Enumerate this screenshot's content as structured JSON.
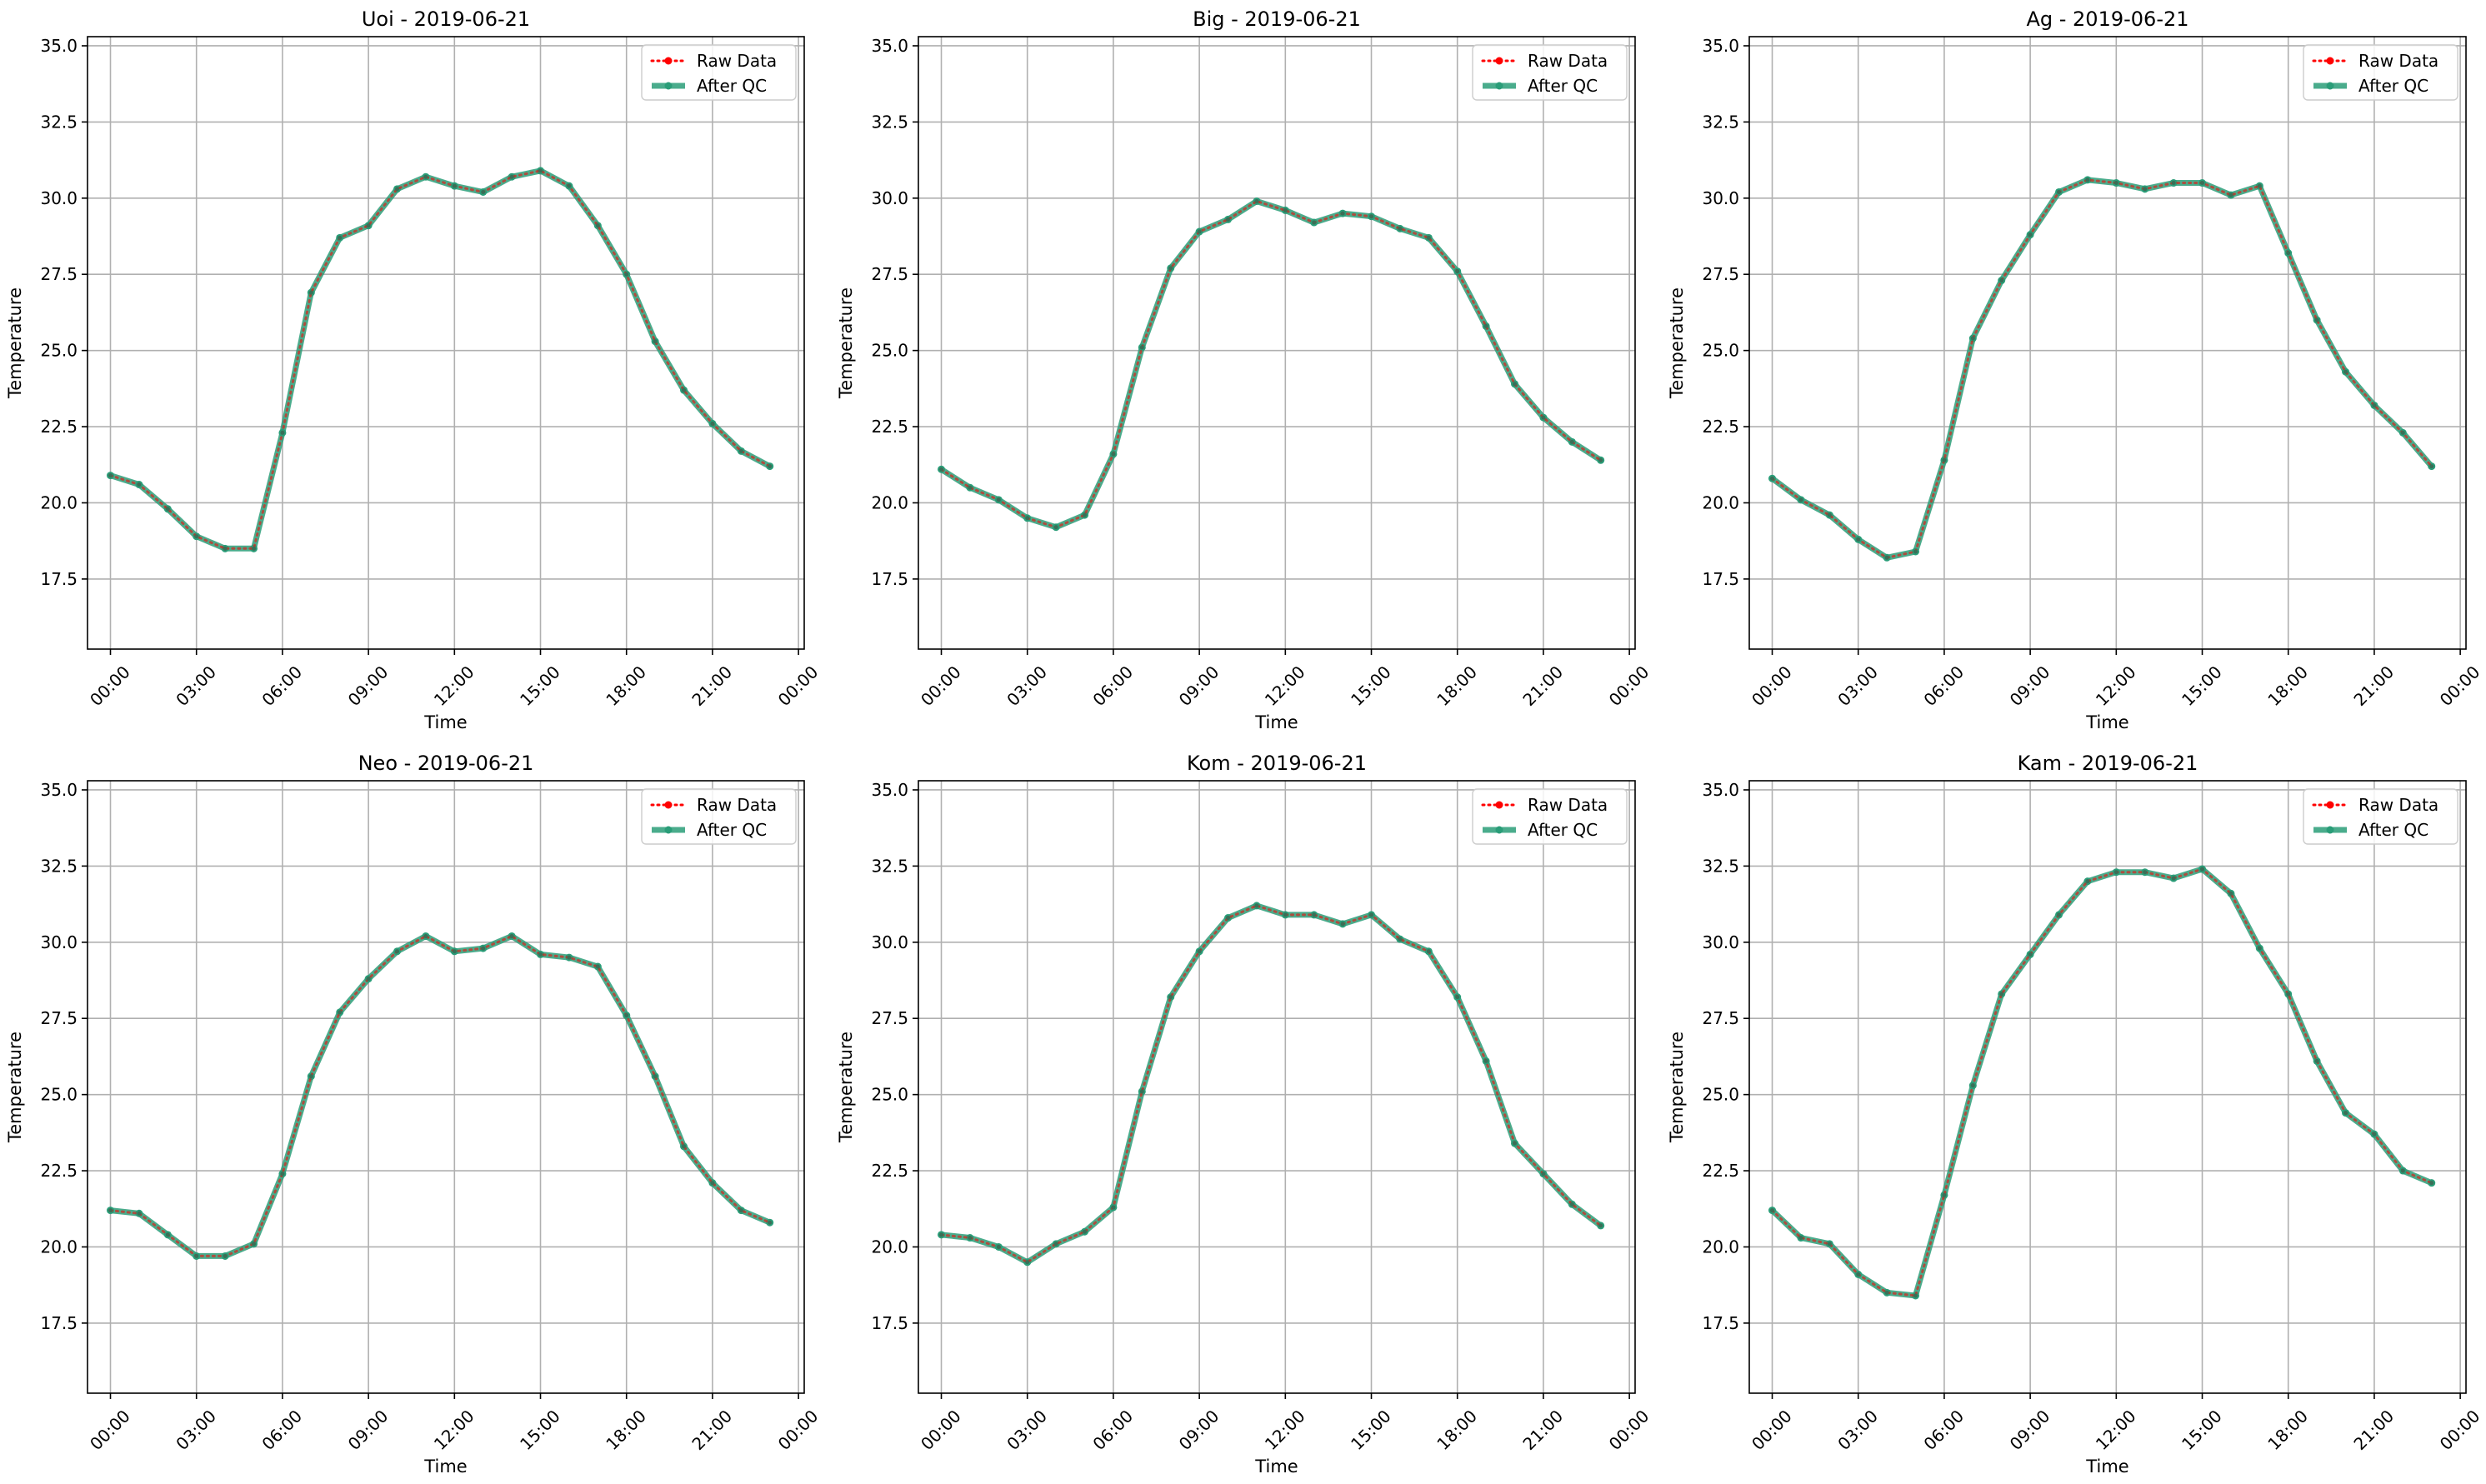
{
  "colors": {
    "raw": "#ff0000",
    "qc": "#2a9d78",
    "grid": "#b0b0b0",
    "axis": "#000000"
  },
  "chart_data": [
    {
      "type": "line",
      "title": "Uoi - 2019-06-21",
      "xlabel": "Time",
      "ylabel": "Temperature",
      "xlim": [
        -0.8,
        24.2
      ],
      "ylim": [
        15.2,
        35.3
      ],
      "xticks": [
        0,
        3,
        6,
        9,
        12,
        15,
        18,
        21,
        24
      ],
      "xtick_labels": [
        "00:00",
        "03:00",
        "06:00",
        "09:00",
        "12:00",
        "15:00",
        "18:00",
        "21:00",
        "00:00"
      ],
      "yticks": [
        17.5,
        20.0,
        22.5,
        25.0,
        27.5,
        30.0,
        32.5,
        35.0
      ],
      "ytick_labels": [
        "17.5",
        "20.0",
        "22.5",
        "25.0",
        "27.5",
        "30.0",
        "32.5",
        "35.0"
      ],
      "grid": true,
      "legend": "top-right",
      "x": [
        0,
        1,
        2,
        3,
        4,
        5,
        6,
        7,
        8,
        9,
        10,
        11,
        12,
        13,
        14,
        15,
        16,
        17,
        18,
        19,
        20,
        21,
        22,
        23
      ],
      "series": [
        {
          "name": "Raw Data",
          "values": [
            20.9,
            20.6,
            19.8,
            18.9,
            18.5,
            18.5,
            22.3,
            26.9,
            28.7,
            29.1,
            30.3,
            30.7,
            30.4,
            30.2,
            30.7,
            30.9,
            30.4,
            29.1,
            27.5,
            25.3,
            23.7,
            22.6,
            21.7,
            21.2
          ]
        },
        {
          "name": "After QC",
          "values": [
            20.9,
            20.6,
            19.8,
            18.9,
            18.5,
            18.5,
            22.3,
            26.9,
            28.7,
            29.1,
            30.3,
            30.7,
            30.4,
            30.2,
            30.7,
            30.9,
            30.4,
            29.1,
            27.5,
            25.3,
            23.7,
            22.6,
            21.7,
            21.2
          ]
        }
      ]
    },
    {
      "type": "line",
      "title": "Big - 2019-06-21",
      "xlabel": "Time",
      "ylabel": "Temperature",
      "xlim": [
        -0.8,
        24.2
      ],
      "ylim": [
        15.2,
        35.3
      ],
      "xticks": [
        0,
        3,
        6,
        9,
        12,
        15,
        18,
        21,
        24
      ],
      "xtick_labels": [
        "00:00",
        "03:00",
        "06:00",
        "09:00",
        "12:00",
        "15:00",
        "18:00",
        "21:00",
        "00:00"
      ],
      "yticks": [
        17.5,
        20.0,
        22.5,
        25.0,
        27.5,
        30.0,
        32.5,
        35.0
      ],
      "ytick_labels": [
        "17.5",
        "20.0",
        "22.5",
        "25.0",
        "27.5",
        "30.0",
        "32.5",
        "35.0"
      ],
      "grid": true,
      "legend": "top-right",
      "x": [
        0,
        1,
        2,
        3,
        4,
        5,
        6,
        7,
        8,
        9,
        10,
        11,
        12,
        13,
        14,
        15,
        16,
        17,
        18,
        19,
        20,
        21,
        22,
        23
      ],
      "series": [
        {
          "name": "Raw Data",
          "values": [
            21.1,
            20.5,
            20.1,
            19.5,
            19.2,
            19.6,
            21.6,
            25.1,
            27.7,
            28.9,
            29.3,
            29.9,
            29.6,
            29.2,
            29.5,
            29.4,
            29.0,
            28.7,
            27.6,
            25.8,
            23.9,
            22.8,
            22.0,
            21.4
          ]
        },
        {
          "name": "After QC",
          "values": [
            21.1,
            20.5,
            20.1,
            19.5,
            19.2,
            19.6,
            21.6,
            25.1,
            27.7,
            28.9,
            29.3,
            29.9,
            29.6,
            29.2,
            29.5,
            29.4,
            29.0,
            28.7,
            27.6,
            25.8,
            23.9,
            22.8,
            22.0,
            21.4
          ]
        }
      ]
    },
    {
      "type": "line",
      "title": "Ag - 2019-06-21",
      "xlabel": "Time",
      "ylabel": "Temperature",
      "xlim": [
        -0.8,
        24.2
      ],
      "ylim": [
        15.2,
        35.3
      ],
      "xticks": [
        0,
        3,
        6,
        9,
        12,
        15,
        18,
        21,
        24
      ],
      "xtick_labels": [
        "00:00",
        "03:00",
        "06:00",
        "09:00",
        "12:00",
        "15:00",
        "18:00",
        "21:00",
        "00:00"
      ],
      "yticks": [
        17.5,
        20.0,
        22.5,
        25.0,
        27.5,
        30.0,
        32.5,
        35.0
      ],
      "ytick_labels": [
        "17.5",
        "20.0",
        "22.5",
        "25.0",
        "27.5",
        "30.0",
        "32.5",
        "35.0"
      ],
      "grid": true,
      "legend": "top-right",
      "x": [
        0,
        1,
        2,
        3,
        4,
        5,
        6,
        7,
        8,
        9,
        10,
        11,
        12,
        13,
        14,
        15,
        16,
        17,
        18,
        19,
        20,
        21,
        22,
        23
      ],
      "series": [
        {
          "name": "Raw Data",
          "values": [
            20.8,
            20.1,
            19.6,
            18.8,
            18.2,
            18.4,
            21.4,
            25.4,
            27.3,
            28.8,
            30.2,
            30.6,
            30.5,
            30.3,
            30.5,
            30.5,
            30.1,
            30.4,
            28.2,
            26.0,
            24.3,
            23.2,
            22.3,
            21.2
          ]
        },
        {
          "name": "After QC",
          "values": [
            20.8,
            20.1,
            19.6,
            18.8,
            18.2,
            18.4,
            21.4,
            25.4,
            27.3,
            28.8,
            30.2,
            30.6,
            30.5,
            30.3,
            30.5,
            30.5,
            30.1,
            30.4,
            28.2,
            26.0,
            24.3,
            23.2,
            22.3,
            21.2
          ]
        }
      ]
    },
    {
      "type": "line",
      "title": "Neo - 2019-06-21",
      "xlabel": "Time",
      "ylabel": "Temperature",
      "xlim": [
        -0.8,
        24.2
      ],
      "ylim": [
        15.2,
        35.3
      ],
      "xticks": [
        0,
        3,
        6,
        9,
        12,
        15,
        18,
        21,
        24
      ],
      "xtick_labels": [
        "00:00",
        "03:00",
        "06:00",
        "09:00",
        "12:00",
        "15:00",
        "18:00",
        "21:00",
        "00:00"
      ],
      "yticks": [
        17.5,
        20.0,
        22.5,
        25.0,
        27.5,
        30.0,
        32.5,
        35.0
      ],
      "ytick_labels": [
        "17.5",
        "20.0",
        "22.5",
        "25.0",
        "27.5",
        "30.0",
        "32.5",
        "35.0"
      ],
      "grid": true,
      "legend": "top-right",
      "x": [
        0,
        1,
        2,
        3,
        4,
        5,
        6,
        7,
        8,
        9,
        10,
        11,
        12,
        13,
        14,
        15,
        16,
        17,
        18,
        19,
        20,
        21,
        22,
        23
      ],
      "series": [
        {
          "name": "Raw Data",
          "values": [
            21.2,
            21.1,
            20.4,
            19.7,
            19.7,
            20.1,
            22.4,
            25.6,
            27.7,
            28.8,
            29.7,
            30.2,
            29.7,
            29.8,
            30.2,
            29.6,
            29.5,
            29.2,
            27.6,
            25.6,
            23.3,
            22.1,
            21.2,
            20.8
          ]
        },
        {
          "name": "After QC",
          "values": [
            21.2,
            21.1,
            20.4,
            19.7,
            19.7,
            20.1,
            22.4,
            25.6,
            27.7,
            28.8,
            29.7,
            30.2,
            29.7,
            29.8,
            30.2,
            29.6,
            29.5,
            29.2,
            27.6,
            25.6,
            23.3,
            22.1,
            21.2,
            20.8
          ]
        }
      ]
    },
    {
      "type": "line",
      "title": "Kom - 2019-06-21",
      "xlabel": "Time",
      "ylabel": "Temperature",
      "xlim": [
        -0.8,
        24.2
      ],
      "ylim": [
        15.2,
        35.3
      ],
      "xticks": [
        0,
        3,
        6,
        9,
        12,
        15,
        18,
        21,
        24
      ],
      "xtick_labels": [
        "00:00",
        "03:00",
        "06:00",
        "09:00",
        "12:00",
        "15:00",
        "18:00",
        "21:00",
        "00:00"
      ],
      "yticks": [
        17.5,
        20.0,
        22.5,
        25.0,
        27.5,
        30.0,
        32.5,
        35.0
      ],
      "ytick_labels": [
        "17.5",
        "20.0",
        "22.5",
        "25.0",
        "27.5",
        "30.0",
        "32.5",
        "35.0"
      ],
      "grid": true,
      "legend": "top-right",
      "x": [
        0,
        1,
        2,
        3,
        4,
        5,
        6,
        7,
        8,
        9,
        10,
        11,
        12,
        13,
        14,
        15,
        16,
        17,
        18,
        19,
        20,
        21,
        22,
        23
      ],
      "series": [
        {
          "name": "Raw Data",
          "values": [
            20.4,
            20.3,
            20.0,
            19.5,
            20.1,
            20.5,
            21.3,
            25.1,
            28.2,
            29.7,
            30.8,
            31.2,
            30.9,
            30.9,
            30.6,
            30.9,
            30.1,
            29.7,
            28.2,
            26.1,
            23.4,
            22.4,
            21.4,
            20.7
          ]
        },
        {
          "name": "After QC",
          "values": [
            20.4,
            20.3,
            20.0,
            19.5,
            20.1,
            20.5,
            21.3,
            25.1,
            28.2,
            29.7,
            30.8,
            31.2,
            30.9,
            30.9,
            30.6,
            30.9,
            30.1,
            29.7,
            28.2,
            26.1,
            23.4,
            22.4,
            21.4,
            20.7
          ]
        }
      ]
    },
    {
      "type": "line",
      "title": "Kam - 2019-06-21",
      "xlabel": "Time",
      "ylabel": "Temperature",
      "xlim": [
        -0.8,
        24.2
      ],
      "ylim": [
        15.2,
        35.3
      ],
      "xticks": [
        0,
        3,
        6,
        9,
        12,
        15,
        18,
        21,
        24
      ],
      "xtick_labels": [
        "00:00",
        "03:00",
        "06:00",
        "09:00",
        "12:00",
        "15:00",
        "18:00",
        "21:00",
        "00:00"
      ],
      "yticks": [
        17.5,
        20.0,
        22.5,
        25.0,
        27.5,
        30.0,
        32.5,
        35.0
      ],
      "ytick_labels": [
        "17.5",
        "20.0",
        "22.5",
        "25.0",
        "27.5",
        "30.0",
        "32.5",
        "35.0"
      ],
      "grid": true,
      "legend": "top-right",
      "x": [
        0,
        1,
        2,
        3,
        4,
        5,
        6,
        7,
        8,
        9,
        10,
        11,
        12,
        13,
        14,
        15,
        16,
        17,
        18,
        19,
        20,
        21,
        22,
        23
      ],
      "series": [
        {
          "name": "Raw Data",
          "values": [
            21.2,
            20.3,
            20.1,
            19.1,
            18.5,
            18.4,
            21.7,
            25.3,
            28.3,
            29.6,
            30.9,
            32.0,
            32.3,
            32.3,
            32.1,
            32.4,
            31.6,
            29.8,
            28.3,
            26.1,
            24.4,
            23.7,
            22.5,
            22.1
          ]
        },
        {
          "name": "After QC",
          "values": [
            21.2,
            20.3,
            20.1,
            19.1,
            18.5,
            18.4,
            21.7,
            25.3,
            28.3,
            29.6,
            30.9,
            32.0,
            32.3,
            32.3,
            32.1,
            32.4,
            31.6,
            29.8,
            28.3,
            26.1,
            24.4,
            23.7,
            22.5,
            22.1
          ]
        }
      ]
    }
  ]
}
